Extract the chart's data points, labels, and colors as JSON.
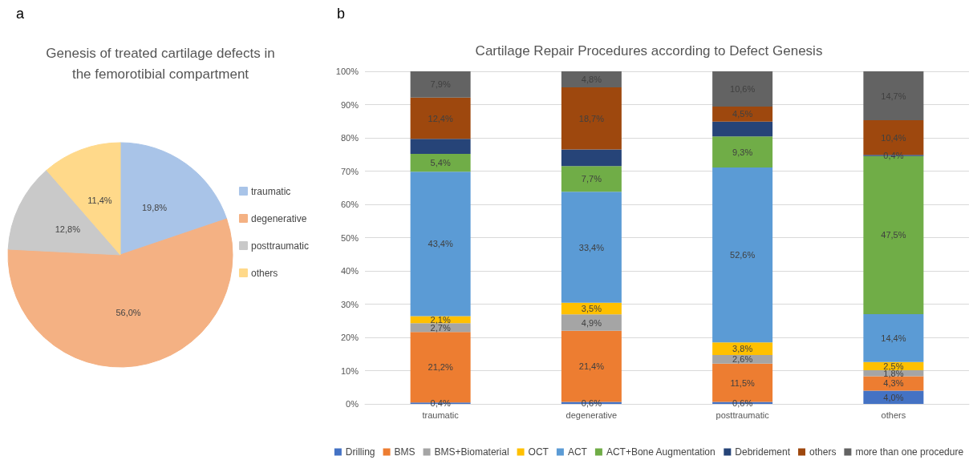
{
  "chart_data": [
    {
      "type": "pie",
      "title": "Genesis of treated cartilage defects in the femorotibial compartment",
      "annotations": [
        "a"
      ],
      "categories": [
        "traumatic",
        "degenerative",
        "posttraumatic",
        "others"
      ],
      "values": [
        19.8,
        56.0,
        12.8,
        11.4
      ],
      "value_labels": [
        "19,8%",
        "56,0%",
        "12,8%",
        "11,4%"
      ],
      "colors": [
        "#a9c4e8",
        "#f4b183",
        "#c9c9c9",
        "#ffd98a"
      ],
      "legend": "right"
    },
    {
      "type": "bar",
      "stacked": true,
      "title": "Cartilage Repair Procedures according to Defect Genesis",
      "annotations": [
        "b"
      ],
      "categories": [
        "traumatic",
        "degenerative",
        "posttraumatic",
        "others"
      ],
      "ylim": [
        0,
        100
      ],
      "yticks": [
        {
          "value": 0,
          "label": "0%"
        },
        {
          "value": 10,
          "label": "10%"
        },
        {
          "value": 20,
          "label": "20%"
        },
        {
          "value": 30,
          "label": "30%"
        },
        {
          "value": 40,
          "label": "40%"
        },
        {
          "value": 50,
          "label": "50%"
        },
        {
          "value": 60,
          "label": "60%"
        },
        {
          "value": 70,
          "label": "70%"
        },
        {
          "value": 80,
          "label": "80%"
        },
        {
          "value": 90,
          "label": "90%"
        },
        {
          "value": 100,
          "label": "100%"
        }
      ],
      "grid": "y",
      "legend": "bottom",
      "series": [
        {
          "name": "Drilling",
          "color": "#4472c4",
          "values": [
            0.4,
            0.6,
            0.6,
            4.0
          ],
          "value_labels": [
            "0,4%",
            "0,6%",
            "0,6%",
            "4,0%"
          ]
        },
        {
          "name": "BMS",
          "color": "#ed7d31",
          "values": [
            21.2,
            21.4,
            11.5,
            4.3
          ],
          "value_labels": [
            "21,2%",
            "21,4%",
            "11,5%",
            "4,3%"
          ]
        },
        {
          "name": "BMS+Biomaterial",
          "color": "#a5a5a5",
          "values": [
            2.7,
            4.9,
            2.6,
            1.8
          ],
          "value_labels": [
            "2,7%",
            "4,9%",
            "2,6%",
            "1,8%"
          ]
        },
        {
          "name": "OCT",
          "color": "#ffc000",
          "values": [
            2.1,
            3.5,
            3.8,
            2.5
          ],
          "value_labels": [
            "2,1%",
            "3,5%",
            "3,8%",
            "2,5%"
          ]
        },
        {
          "name": "ACT",
          "color": "#5b9bd5",
          "values": [
            43.4,
            33.4,
            52.6,
            14.4
          ],
          "value_labels": [
            "43,4%",
            "33,4%",
            "52,6%",
            "14,4%"
          ]
        },
        {
          "name": "ACT+Bone Augmentation",
          "color": "#70ad47",
          "values": [
            5.4,
            7.7,
            9.3,
            47.5
          ],
          "value_labels": [
            "5,4%",
            "7,7%",
            "9,3%",
            "47,5%"
          ]
        },
        {
          "name": "Debridement",
          "color": "#264478",
          "values": [
            4.5,
            5.0,
            4.5,
            0.4
          ],
          "value_labels": [
            null,
            null,
            null,
            "0,4%"
          ]
        },
        {
          "name": "others",
          "color": "#9e480e",
          "values": [
            12.4,
            18.7,
            4.5,
            10.4
          ],
          "value_labels": [
            "12,4%",
            "18,7%",
            "4,5%",
            "10,4%"
          ]
        },
        {
          "name": "more than one procedure",
          "color": "#636363",
          "values": [
            7.9,
            4.8,
            10.6,
            14.7
          ],
          "value_labels": [
            "7,9%",
            "4,8%",
            "10,6%",
            "14,7%"
          ]
        }
      ]
    }
  ]
}
